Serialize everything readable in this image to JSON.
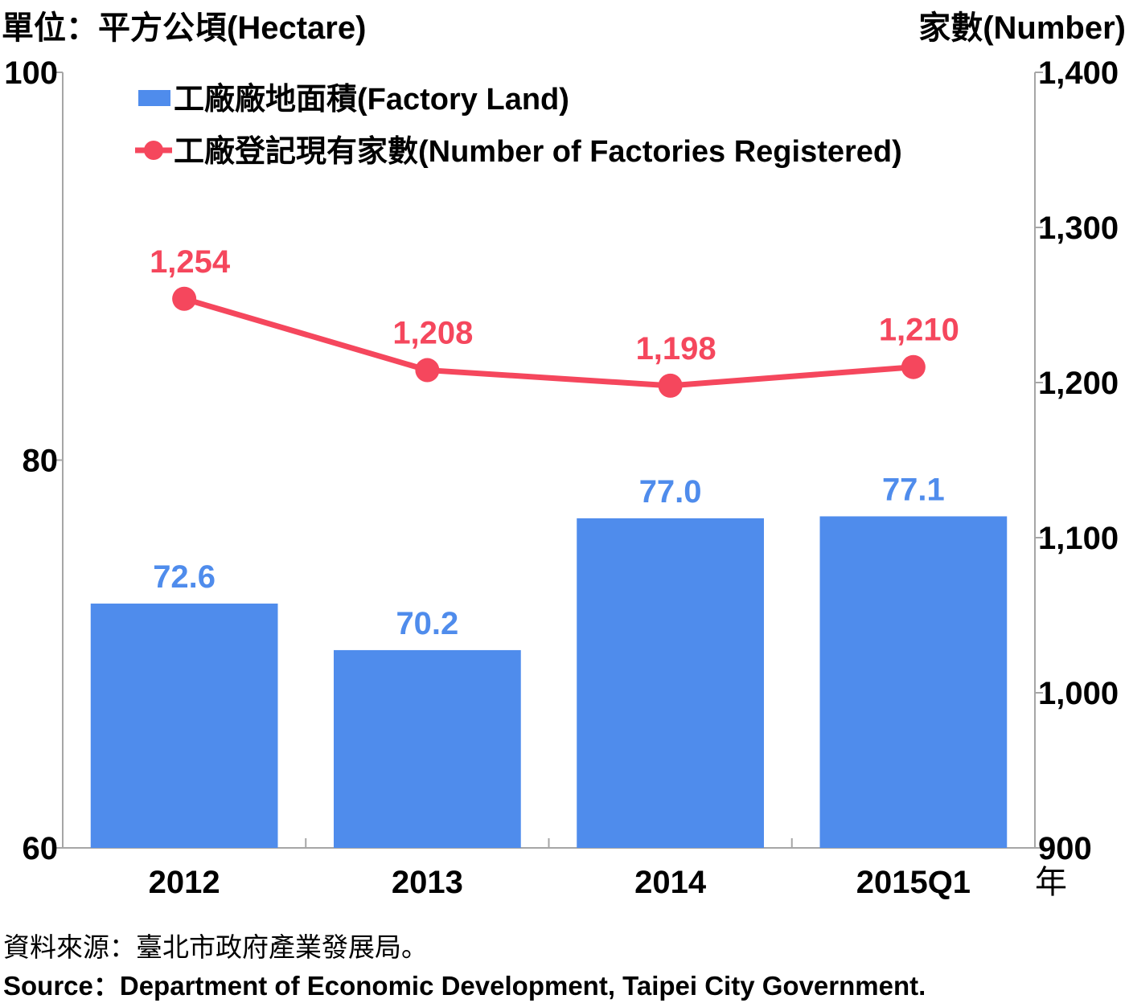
{
  "header": {
    "left_unit": "單位：平方公頃(Hectare)",
    "right_unit": "家數(Number)"
  },
  "chart_data": {
    "type": "bar",
    "categories": [
      "2012",
      "2013",
      "2014",
      "2015Q1"
    ],
    "x_unit_label": "年",
    "series": [
      {
        "name": "工廠廠地面積(Factory Land)",
        "type": "bar",
        "axis": "left",
        "color": "#4f8cec",
        "values": [
          72.6,
          70.2,
          77.0,
          77.1
        ],
        "labels": [
          "72.6",
          "70.2",
          "77.0",
          "77.1"
        ]
      },
      {
        "name": "工廠登記現有家數(Number of Factories Registered)",
        "type": "line",
        "axis": "right",
        "color": "#f5475d",
        "values": [
          1254,
          1208,
          1198,
          1210
        ],
        "labels": [
          "1,254",
          "1,208",
          "1,198",
          "1,210"
        ]
      }
    ],
    "left_axis": {
      "ylim": [
        60,
        100
      ],
      "ticks": [
        60,
        80,
        100
      ],
      "tick_labels": [
        "60",
        "80",
        "100"
      ]
    },
    "right_axis": {
      "ylim": [
        900,
        1400
      ],
      "ticks": [
        900,
        1000,
        1100,
        1200,
        1300,
        1400
      ],
      "tick_labels": [
        "900",
        "1,000",
        "1,100",
        "1,200",
        "1,300",
        "1,400"
      ]
    },
    "legend_position": "top-left",
    "grid": false
  },
  "source": {
    "zh": "資料來源：臺北市政府產業發展局。",
    "en": "Source：Department of Economic Development, Taipei City Government."
  }
}
